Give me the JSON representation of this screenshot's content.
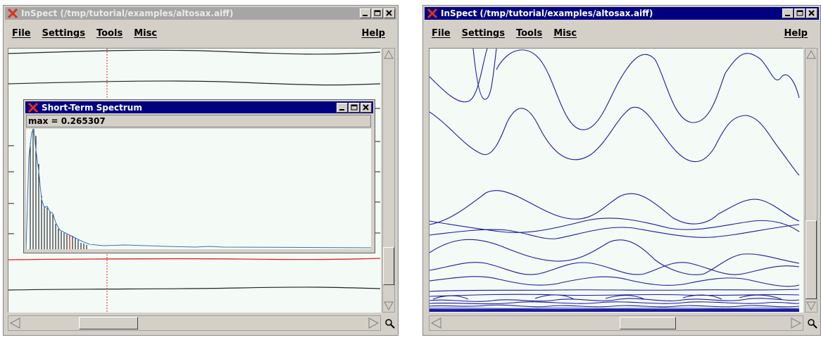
{
  "left_window": {
    "title": "InSpect (/tmp/tutorial/examples/altosax.aiff)",
    "menu": [
      "File",
      "Settings",
      "Tools",
      "Misc"
    ],
    "help": "Help",
    "popup": {
      "title": "Short-Term Spectrum",
      "max_label": "max = 0.265307"
    }
  },
  "right_window": {
    "title": "InSpect (/tmp/tutorial/examples/altosax.aiff)",
    "menu": [
      "File",
      "Settings",
      "Tools",
      "Misc"
    ],
    "help": "Help"
  },
  "colors": {
    "title_active": "#000080",
    "title_inactive": "#a6a6a6",
    "canvas_bg": "#f4fbf7",
    "trace_blue": "#1a1a9e",
    "cursor_red": "#e02020"
  },
  "icons": [
    "x-logo-icon",
    "minimize-icon",
    "maximize-icon",
    "close-icon",
    "zoom-icon",
    "scroll-up-arrow-icon",
    "scroll-down-arrow-icon",
    "scroll-left-arrow-icon",
    "scroll-right-arrow-icon"
  ]
}
